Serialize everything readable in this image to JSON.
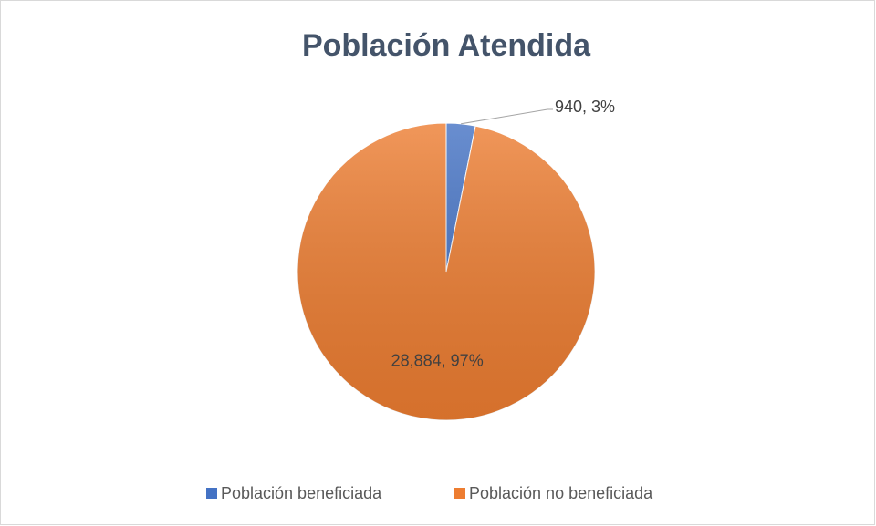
{
  "chart_data": {
    "type": "pie",
    "title": "Población Atendida",
    "categories": [
      "Población beneficiada",
      "Población no beneficiada"
    ],
    "values": [
      940,
      28884
    ],
    "value_labels": [
      "940, 3%",
      "28,884, 97%"
    ],
    "colors": [
      "#4472c4",
      "#ed7d31"
    ],
    "legend": "bottom"
  }
}
